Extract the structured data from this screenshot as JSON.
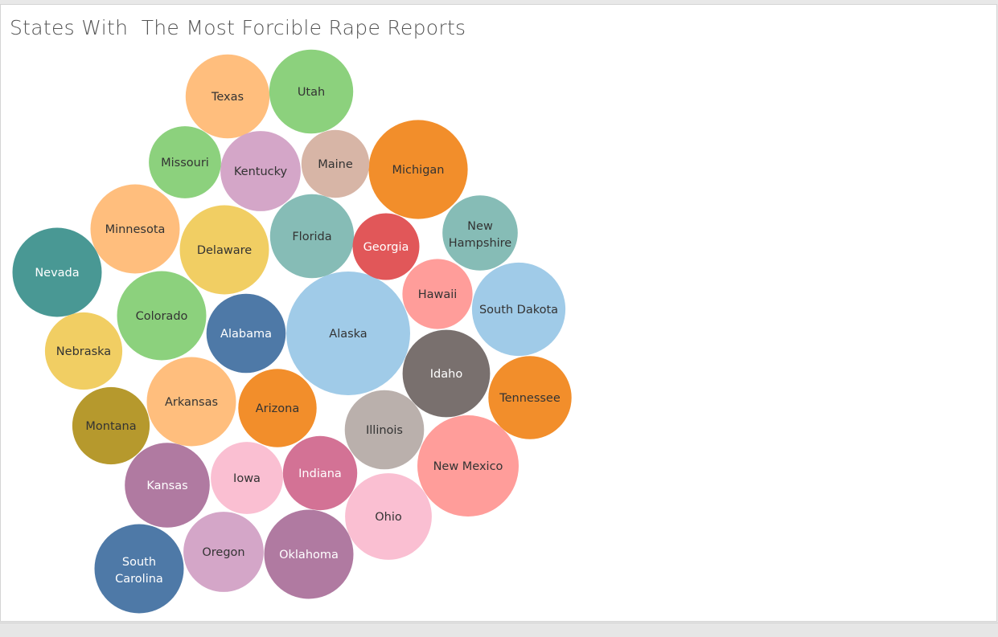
{
  "chart_data": {
    "type": "packed_bubble",
    "title": "States With  The Most Forcible Rape Reports",
    "xlabel": "",
    "ylabel": "",
    "legend": "none",
    "grid": false,
    "points": [
      {
        "label": "Alaska",
        "value": 100,
        "color": "#a0cbe8",
        "text_color": "#333333"
      },
      {
        "label": "Michigan",
        "value": 64,
        "color": "#f28e2b",
        "text_color": "#333333"
      },
      {
        "label": "New Mexico",
        "value": 67,
        "color": "#ff9d9a",
        "text_color": "#333333"
      },
      {
        "label": "South Dakota",
        "value": 57,
        "color": "#a0cbe8",
        "text_color": "#333333"
      },
      {
        "label": "Oklahoma",
        "value": 52,
        "color": "#b07aa1",
        "text_color": "#ffffff"
      },
      {
        "label": "Nevada",
        "value": 52,
        "color": "#499894",
        "text_color": "#ffffff"
      },
      {
        "label": "South Carolina",
        "value": 52,
        "color": "#4e79a7",
        "text_color": "#ffffff"
      },
      {
        "label": "Delaware",
        "value": 52,
        "color": "#f1ce63",
        "text_color": "#333333"
      },
      {
        "label": "Minnesota",
        "value": 52,
        "color": "#ffbe7d",
        "text_color": "#333333"
      },
      {
        "label": "Colorado",
        "value": 52,
        "color": "#8cd17d",
        "text_color": "#333333"
      },
      {
        "label": "Arkansas",
        "value": 52,
        "color": "#ffbe7d",
        "text_color": "#333333"
      },
      {
        "label": "Idaho",
        "value": 50,
        "color": "#79706e",
        "text_color": "#ffffff"
      },
      {
        "label": "Ohio",
        "value": 49,
        "color": "#fabfd2",
        "text_color": "#333333"
      },
      {
        "label": "Kansas",
        "value": 47,
        "color": "#b07aa1",
        "text_color": "#ffffff"
      },
      {
        "label": "Texas",
        "value": 46,
        "color": "#ffbe7d",
        "text_color": "#333333"
      },
      {
        "label": "Tennessee",
        "value": 45,
        "color": "#f28e2b",
        "text_color": "#333333"
      },
      {
        "label": "Florida",
        "value": 46,
        "color": "#86bcb6",
        "text_color": "#333333"
      },
      {
        "label": "Utah",
        "value": 46,
        "color": "#8cd17d",
        "text_color": "#333333"
      },
      {
        "label": "Kentucky",
        "value": 42,
        "color": "#d4a6c8",
        "text_color": "#333333"
      },
      {
        "label": "Oregon",
        "value": 42,
        "color": "#d4a6c8",
        "text_color": "#333333"
      },
      {
        "label": "Alabama",
        "value": 41,
        "color": "#4e79a7",
        "text_color": "#ffffff"
      },
      {
        "label": "Illinois",
        "value": 41,
        "color": "#bab0ac",
        "text_color": "#333333"
      },
      {
        "label": "Arizona",
        "value": 40,
        "color": "#f28e2b",
        "text_color": "#333333"
      },
      {
        "label": "Montana",
        "value": 39,
        "color": "#b6992d",
        "text_color": "#333333"
      },
      {
        "label": "Nebraska",
        "value": 39,
        "color": "#f1ce63",
        "text_color": "#333333"
      },
      {
        "label": "New Hampshire",
        "value": 37,
        "color": "#86bcb6",
        "text_color": "#333333"
      },
      {
        "label": "Hawaii",
        "value": 32,
        "color": "#ff9d9a",
        "text_color": "#333333"
      },
      {
        "label": "Missouri",
        "value": 34,
        "color": "#8cd17d",
        "text_color": "#333333"
      },
      {
        "label": "Indiana",
        "value": 36,
        "color": "#d37295",
        "text_color": "#ffffff"
      },
      {
        "label": "Iowa",
        "value": 34,
        "color": "#fabfd2",
        "text_color": "#333333"
      },
      {
        "label": "Maine",
        "value": 30,
        "color": "#d7b5a6",
        "text_color": "#333333"
      },
      {
        "label": "Georgia",
        "value": 29,
        "color": "#e15759",
        "text_color": "#ffffff"
      }
    ]
  }
}
